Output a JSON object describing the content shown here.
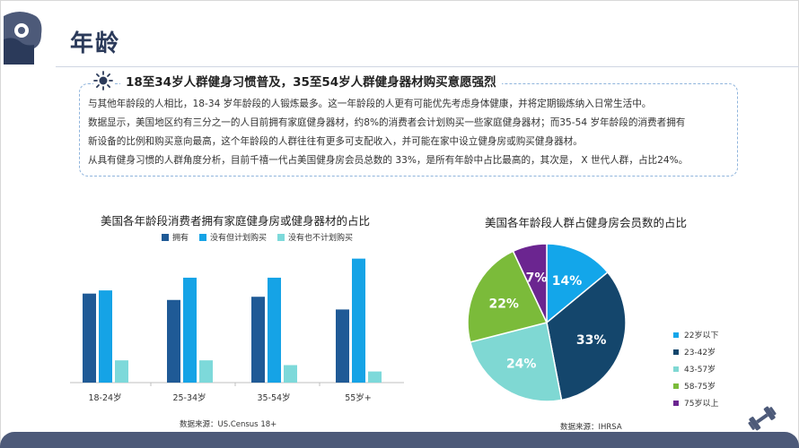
{
  "header": {
    "title": "年龄"
  },
  "callout": {
    "heading": "18至34岁人群健身习惯普及，35至54岁人群健身器材购买意愿强烈",
    "paragraphs": [
      "与其他年龄段的人相比，18-34 岁年龄段的人锻炼最多。这一年龄段的人更有可能优先考虑身体健康，并将定期锻炼纳入日常生活中。",
      "数据显示，美国地区约有三分之一的人目前拥有家庭健身器材，约8%的消费者会计划购买一些家庭健身器材；而35-54 岁年龄段的消费者拥有",
      "新设备的比例和购买意向最高，这个年龄段的人群往往有更多可支配收入，并可能在家中设立健身房或购买健身器材。",
      "从具有健身习惯的人群角度分析，目前千禧一代占美国健身房会员总数的 33%，是所有年龄中占比最高的，其次是， X 世代人群，占比24%。"
    ]
  },
  "chart_data": [
    {
      "type": "bar",
      "title": "美国各年龄段消费者拥有家庭健身房或健身器材的占比",
      "categories": [
        "18-24岁",
        "25-34岁",
        "35-54岁",
        "55岁+"
      ],
      "series": [
        {
          "name": "拥有",
          "color": "#1f5a96",
          "values": [
            28,
            26,
            27,
            23
          ]
        },
        {
          "name": "没有但计划购买",
          "color": "#15a3e6",
          "values": [
            29,
            33,
            33,
            39
          ]
        },
        {
          "name": "没有也不计划购买",
          "color": "#7dd9da",
          "values": [
            7,
            7,
            5.5,
            3.5
          ]
        }
      ],
      "ylim": [
        0,
        42
      ],
      "source": "数据来源：US.Census 18+"
    },
    {
      "type": "pie",
      "title": "美国各年龄段人群占健身房会员数的占比",
      "labels": [
        "22岁以下",
        "23-42岁",
        "43-57岁",
        "58-75岁",
        "75岁以上"
      ],
      "values": [
        14,
        33,
        24,
        22,
        7
      ],
      "value_labels": [
        "14%",
        "33%",
        "24%",
        "22%",
        "7%"
      ],
      "colors": [
        "#13a6ea",
        "#14466c",
        "#7fd8d3",
        "#7bbb3a",
        "#6b2590"
      ],
      "source": "数据来源：IHRSA"
    }
  ]
}
